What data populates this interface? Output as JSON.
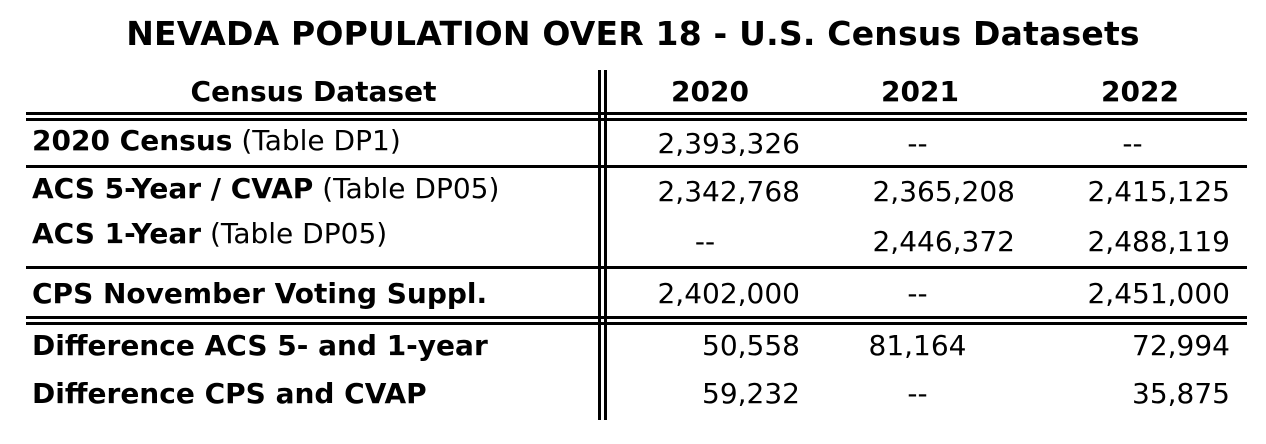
{
  "title": "NEVADA POPULATION OVER 18 - U.S. Census Datasets",
  "header": {
    "dataset": "Census Dataset",
    "years": [
      "2020",
      "2021",
      "2022"
    ]
  },
  "rows": [
    {
      "label": "2020 Census",
      "note": "(Table DP1)",
      "values": [
        "2,393,326",
        "--",
        "--"
      ]
    },
    {
      "label": "ACS 5-Year / CVAP",
      "note": "(Table DP05)",
      "values": [
        "2,342,768",
        "2,365,208",
        "2,415,125"
      ]
    },
    {
      "label": "ACS 1-Year",
      "note": "(Table DP05)",
      "values": [
        "--",
        "2,446,372",
        "2,488,119"
      ]
    },
    {
      "label": "CPS November Voting Suppl.",
      "note": "",
      "values": [
        "2,402,000",
        "--",
        "2,451,000"
      ]
    },
    {
      "label": "Difference ACS 5- and 1-year",
      "note": "",
      "values": [
        "50,558",
        "81,164",
        "72,994"
      ]
    },
    {
      "label": "Difference CPS and CVAP",
      "note": "",
      "values": [
        "59,232",
        "--",
        "35,875"
      ]
    }
  ]
}
